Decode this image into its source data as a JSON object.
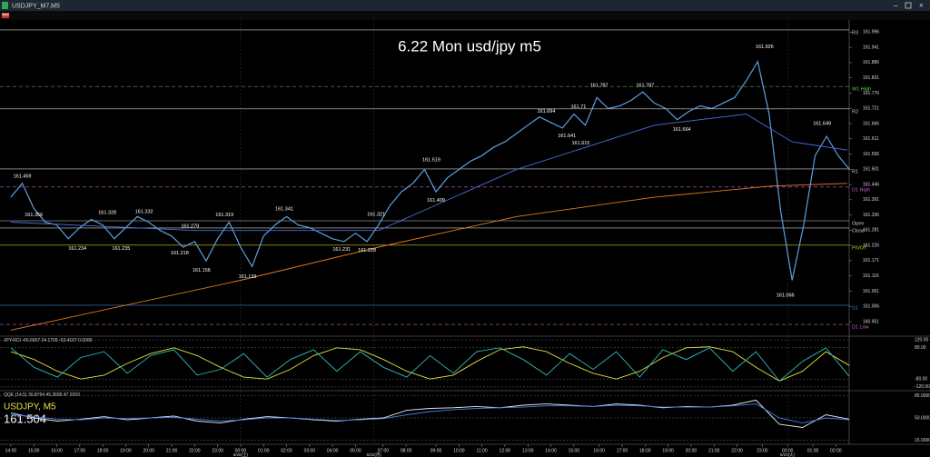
{
  "window": {
    "title": "USDJPY_M7,M5"
  },
  "chart_data": {
    "type": "line",
    "title": "6.22 Mon usd/jpy m5",
    "symbol_label": "USDJPY, M5",
    "last_price": 161.504,
    "xlim": [
      -0.47,
      36.48
    ],
    "ylim": [
      160.905,
      162.03
    ],
    "x": [
      0,
      0.5,
      1,
      1.5,
      2,
      2.5,
      3,
      3.5,
      4,
      4.5,
      5,
      5.5,
      6,
      6.5,
      7,
      7.5,
      8,
      8.5,
      9,
      9.5,
      10,
      10.5,
      11,
      11.5,
      12,
      12.5,
      13,
      13.5,
      14,
      14.5,
      15,
      15.5,
      16,
      16.5,
      17,
      17.5,
      18,
      18.5,
      19,
      19.5,
      20,
      20.5,
      21,
      21.5,
      22,
      22.5,
      23,
      23.5,
      24,
      24.5,
      25,
      25.5,
      26,
      26.5,
      27,
      27.5,
      28,
      28.5,
      29,
      29.5,
      30,
      30.5,
      31,
      31.5,
      32,
      32.5,
      33,
      33.5,
      34,
      34.5,
      35,
      35.5,
      36,
      36.5
    ],
    "color": "#5aa0e0",
    "values": [
      161.4,
      161.45,
      161.36,
      161.31,
      161.3,
      161.25,
      161.29,
      161.32,
      161.3,
      161.25,
      161.29,
      161.33,
      161.31,
      161.28,
      161.26,
      161.22,
      161.24,
      161.17,
      161.25,
      161.31,
      161.22,
      161.15,
      161.26,
      161.3,
      161.33,
      161.3,
      161.29,
      161.27,
      161.25,
      161.24,
      161.27,
      161.24,
      161.3,
      161.37,
      161.42,
      161.45,
      161.5,
      161.42,
      161.47,
      161.5,
      161.53,
      161.55,
      161.58,
      161.6,
      161.63,
      161.66,
      161.69,
      161.67,
      161.65,
      161.7,
      161.66,
      161.76,
      161.72,
      161.73,
      161.75,
      161.78,
      161.74,
      161.72,
      161.68,
      161.71,
      161.73,
      161.72,
      161.74,
      161.76,
      161.82,
      161.89,
      161.7,
      161.35,
      161.1,
      161.3,
      161.55,
      161.62,
      161.55,
      161.5
    ],
    "moving_averages": [
      {
        "color": "#e07b20",
        "x": [
          0,
          10,
          16,
          22,
          28,
          33,
          36.4
        ],
        "values": [
          160.92,
          161.1,
          161.22,
          161.33,
          161.4,
          161.44,
          161.45
        ]
      },
      {
        "color": "#4a6fd8",
        "x": [
          0,
          8,
          16,
          22,
          28,
          32,
          34,
          36.4
        ],
        "values": [
          161.31,
          161.28,
          161.28,
          161.5,
          161.66,
          161.7,
          161.6,
          161.57
        ]
      }
    ],
    "levels": [
      {
        "label": "R3",
        "value": 162.004,
        "color": "#cfcfcf"
      },
      {
        "label": "W1 High",
        "value": 161.8,
        "color": "#5fd35f"
      },
      {
        "label": "R2",
        "value": 161.719,
        "color": "#cfcfcf"
      },
      {
        "label": "R1",
        "value": 161.502,
        "color": "#cfcfcf"
      },
      {
        "label": "D1 High",
        "value": 161.437,
        "color": "#d060d0"
      },
      {
        "label": "Open",
        "value": 161.315,
        "color": "#cfcfcf"
      },
      {
        "label": "Close",
        "value": 161.289,
        "color": "#cfcfcf"
      },
      {
        "label": "PIVOT",
        "value": 161.227,
        "color": "#d8d020"
      },
      {
        "label": "S1",
        "value": 161.01,
        "color": "#3f7fe0"
      },
      {
        "label": "D1 Low",
        "value": 160.941,
        "color": "#d060d0"
      }
    ],
    "price_labels": [
      {
        "value": 161.459,
        "x": 0.5
      },
      {
        "value": 161.356,
        "x": 1
      },
      {
        "value": 161.234,
        "x": 2.9
      },
      {
        "value": 161.328,
        "x": 4.2
      },
      {
        "value": 161.235,
        "x": 4.8
      },
      {
        "value": 161.332,
        "x": 5.8
      },
      {
        "value": 161.279,
        "x": 7.8
      },
      {
        "value": 161.218,
        "x": 7.35
      },
      {
        "value": 161.156,
        "x": 8.3
      },
      {
        "value": 161.319,
        "x": 9.3
      },
      {
        "value": 161.133,
        "x": 10.3
      },
      {
        "value": 161.341,
        "x": 11.9
      },
      {
        "value": 161.231,
        "x": 14.4
      },
      {
        "value": 161.321,
        "x": 15.9
      },
      {
        "value": 161.228,
        "x": 15.5
      },
      {
        "value": 161.519,
        "x": 18.3
      },
      {
        "value": 161.409,
        "x": 18.5
      },
      {
        "value": 161.694,
        "x": 23.3
      },
      {
        "value": 161.641,
        "x": 24.2
      },
      {
        "value": 161.71,
        "x": 24.7
      },
      {
        "value": 161.615,
        "x": 24.8
      },
      {
        "value": 161.787,
        "x": 25.6
      },
      {
        "value": 161.787,
        "x": 27.6
      },
      {
        "value": 161.664,
        "x": 29.2
      },
      {
        "value": 161.926,
        "x": 32.8
      },
      {
        "value": 161.066,
        "x": 33.7
      },
      {
        "value": 161.649,
        "x": 35.3
      }
    ],
    "xticks": [
      {
        "value": 0,
        "label": "14:00"
      },
      {
        "value": 1,
        "label": "15:00"
      },
      {
        "value": 2,
        "label": "16:00"
      },
      {
        "value": 3,
        "label": "17:00"
      },
      {
        "value": 4,
        "label": "18:00"
      },
      {
        "value": 5,
        "label": "19:00"
      },
      {
        "value": 6,
        "label": "20:00"
      },
      {
        "value": 7,
        "label": "21:00"
      },
      {
        "value": 8,
        "label": "22:00"
      },
      {
        "value": 9,
        "label": "23:00"
      },
      {
        "value": 10,
        "label": "00:00"
      },
      {
        "value": 11,
        "label": "01:00"
      },
      {
        "value": 12,
        "label": "02:00"
      },
      {
        "value": 13,
        "label": "03:00"
      },
      {
        "value": 14,
        "label": "04:00"
      },
      {
        "value": 15,
        "label": "05:00"
      },
      {
        "value": 16.2,
        "label": "07:00"
      },
      {
        "value": 17.2,
        "label": "08:00"
      },
      {
        "value": 18.5,
        "label": "09:00"
      },
      {
        "value": 19.5,
        "label": "10:00"
      },
      {
        "value": 20.5,
        "label": "11:00"
      },
      {
        "value": 21.5,
        "label": "12:00"
      },
      {
        "value": 22.5,
        "label": "13:00"
      },
      {
        "value": 23.5,
        "label": "14:00"
      },
      {
        "value": 24.5,
        "label": "15:00"
      },
      {
        "value": 25.6,
        "label": "16:00"
      },
      {
        "value": 26.6,
        "label": "17:00"
      },
      {
        "value": 27.6,
        "label": "18:00"
      },
      {
        "value": 28.6,
        "label": "19:00"
      },
      {
        "value": 29.6,
        "label": "20:00"
      },
      {
        "value": 30.6,
        "label": "21:00"
      },
      {
        "value": 31.6,
        "label": "22:00"
      },
      {
        "value": 32.7,
        "label": "23:00"
      },
      {
        "value": 33.8,
        "label": "00:00"
      },
      {
        "value": 34.9,
        "label": "01:00"
      },
      {
        "value": 35.9,
        "label": "02:00"
      }
    ],
    "date_ticks": [
      {
        "value": 10,
        "label": "6/20(土)"
      },
      {
        "value": 15.8,
        "label": "6/22(月)"
      },
      {
        "value": 33.8,
        "label": "6/23(火)"
      }
    ],
    "yticks": [
      161.996,
      161.941,
      161.886,
      161.831,
      161.776,
      161.721,
      161.666,
      161.611,
      161.556,
      161.501,
      161.446,
      161.391,
      161.336,
      161.281,
      161.226,
      161.171,
      161.116,
      161.061,
      161.006,
      160.951
    ],
    "rci": {
      "label": "JPY-RCI -66.6667 24.1709 -53.4107 0.0000",
      "ylim": [
        -130,
        130
      ],
      "yticks": [
        {
          "value": 120,
          "label": "120.00"
        },
        {
          "value": 80,
          "label": "80.00"
        },
        {
          "value": -80,
          "label": "-80.00"
        },
        {
          "value": -120,
          "label": "-120.00"
        }
      ],
      "lines": [
        {
          "color": "#e8e040",
          "values": [
            60,
            20,
            -40,
            -80,
            -60,
            0,
            50,
            80,
            40,
            -20,
            -70,
            -80,
            -30,
            40,
            80,
            70,
            20,
            -40,
            -80,
            -60,
            10,
            70,
            85,
            60,
            0,
            -50,
            -80,
            -40,
            30,
            80,
            85,
            60,
            -20,
            -90,
            -40,
            60,
            -10
          ]
        },
        {
          "color": "#30b8b8",
          "values": [
            80,
            -20,
            -70,
            30,
            60,
            -50,
            40,
            70,
            -60,
            -30,
            50,
            -70,
            20,
            70,
            -40,
            60,
            -20,
            -70,
            40,
            -50,
            60,
            80,
            20,
            -60,
            50,
            -30,
            60,
            -70,
            70,
            20,
            80,
            -40,
            60,
            -90,
            10,
            80,
            -66
          ]
        }
      ]
    },
    "qqe": {
      "label": "QQE (14,5) 30.8764 45.3695 47.9203",
      "ylim": [
        10,
        90
      ],
      "yticks": [
        {
          "value": 85,
          "label": "85.0000"
        },
        {
          "value": 50,
          "label": "50.0000"
        },
        {
          "value": 15,
          "label": "15.0000"
        }
      ],
      "lines": [
        {
          "color": "#e8e8e8",
          "values": [
            58,
            50,
            45,
            48,
            52,
            47,
            50,
            53,
            45,
            42,
            48,
            52,
            50,
            47,
            45,
            48,
            50,
            62,
            65,
            66,
            68,
            66,
            70,
            72,
            70,
            68,
            72,
            70,
            66,
            68,
            67,
            70,
            78,
            40,
            35,
            55,
            48
          ]
        },
        {
          "color": "#3f7fe0",
          "values": [
            55,
            52,
            48,
            47,
            50,
            49,
            50,
            51,
            48,
            45,
            47,
            50,
            50,
            48,
            46,
            47,
            49,
            55,
            60,
            63,
            65,
            66,
            67,
            69,
            69,
            68,
            70,
            69,
            67,
            67,
            67,
            69,
            72,
            50,
            42,
            50,
            47
          ]
        }
      ]
    }
  }
}
